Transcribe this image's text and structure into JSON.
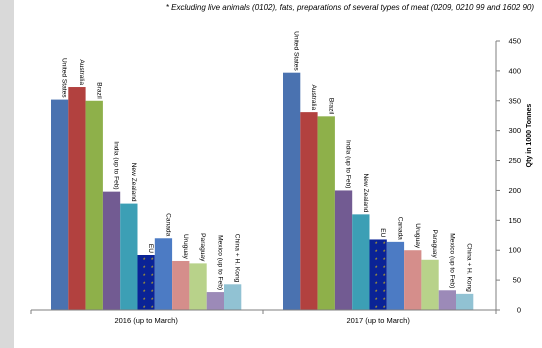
{
  "footnote": "* Excluding live animals (0102), fats, preparations of several types of meat (0209, 0210 99 and 1602 90)",
  "chart_data": {
    "type": "bar",
    "title": "",
    "ylabel": "Qty in 1000 Tonnes",
    "y_axis_side": "right",
    "ylim": [
      0,
      450
    ],
    "yticks": [
      0,
      50,
      100,
      150,
      200,
      250,
      300,
      350,
      400,
      450
    ],
    "grid": false,
    "legend": "none",
    "bar_labels": "rotated above bars",
    "groups": [
      {
        "label": "2016 (up to March)",
        "bars": [
          {
            "label": "United States",
            "value": 352,
            "color": "#4a72b0"
          },
          {
            "label": "Australia",
            "value": 373,
            "color": "#b2413f"
          },
          {
            "label": "Brazil",
            "value": 350,
            "color": "#8eb04a"
          },
          {
            "label": "India (up to Feb)",
            "value": 198,
            "color": "#725b92"
          },
          {
            "label": "New Zealand",
            "value": 178,
            "color": "#3c9fb5"
          },
          {
            "label": "EU",
            "value": 92,
            "color": "#0a2396"
          },
          {
            "label": "Canada",
            "value": 120,
            "color": "#4c7bc4"
          },
          {
            "label": "Uruguay",
            "value": 82,
            "color": "#d58e8b"
          },
          {
            "label": "Paraguay",
            "value": 78,
            "color": "#b8d28a"
          },
          {
            "label": "Mexico (up to Feb)",
            "value": 30,
            "color": "#9c8ab8"
          },
          {
            "label": "China + H. Kong",
            "value": 43,
            "color": "#91c2d3"
          }
        ]
      },
      {
        "label": "2017 (up to March)",
        "bars": [
          {
            "label": "United States",
            "value": 397,
            "color": "#4a72b0"
          },
          {
            "label": "Australia",
            "value": 331,
            "color": "#b2413f"
          },
          {
            "label": "Brazil",
            "value": 324,
            "color": "#8eb04a"
          },
          {
            "label": "India (up to Feb)",
            "value": 200,
            "color": "#725b92"
          },
          {
            "label": "New Zealand",
            "value": 160,
            "color": "#3c9fb5"
          },
          {
            "label": "EU",
            "value": 118,
            "color": "#0a2396"
          },
          {
            "label": "Canada",
            "value": 114,
            "color": "#4c7bc4"
          },
          {
            "label": "Uruguay",
            "value": 100,
            "color": "#d58e8b"
          },
          {
            "label": "Paraguay",
            "value": 84,
            "color": "#b8d28a"
          },
          {
            "label": "Mexico (up to Feb)",
            "value": 33,
            "color": "#9c8ab8"
          },
          {
            "label": "China + H. Kong",
            "value": 27,
            "color": "#91c2d3"
          }
        ]
      }
    ]
  }
}
